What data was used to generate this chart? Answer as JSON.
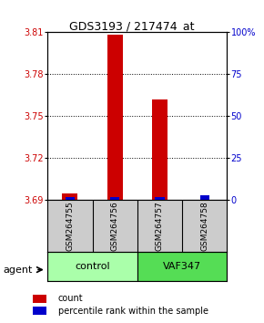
{
  "title": "GDS3193 / 217474_at",
  "samples": [
    "GSM264755",
    "GSM264756",
    "GSM264757",
    "GSM264758"
  ],
  "count_values": [
    3.695,
    3.808,
    3.762,
    3.69
  ],
  "percentile_values": [
    2,
    2,
    2,
    2
  ],
  "ylim_left": [
    3.69,
    3.81
  ],
  "ylim_right": [
    0,
    100
  ],
  "yticks_left": [
    3.69,
    3.72,
    3.75,
    3.78,
    3.81
  ],
  "yticks_right": [
    0,
    25,
    50,
    75,
    100
  ],
  "ytick_labels_right": [
    "0",
    "25",
    "50",
    "75",
    "100%"
  ],
  "groups": [
    {
      "label": "control",
      "samples": [
        0,
        1
      ],
      "color": "#aaffaa"
    },
    {
      "label": "VAF347",
      "samples": [
        2,
        3
      ],
      "color": "#55dd55"
    }
  ],
  "bar_color_count": "#cc0000",
  "bar_color_pct": "#0000cc",
  "background_color": "#ffffff",
  "plot_bg": "#ffffff",
  "label_box_color": "#cccccc",
  "agent_label": "agent",
  "legend_count": "count",
  "legend_pct": "percentile rank within the sample"
}
